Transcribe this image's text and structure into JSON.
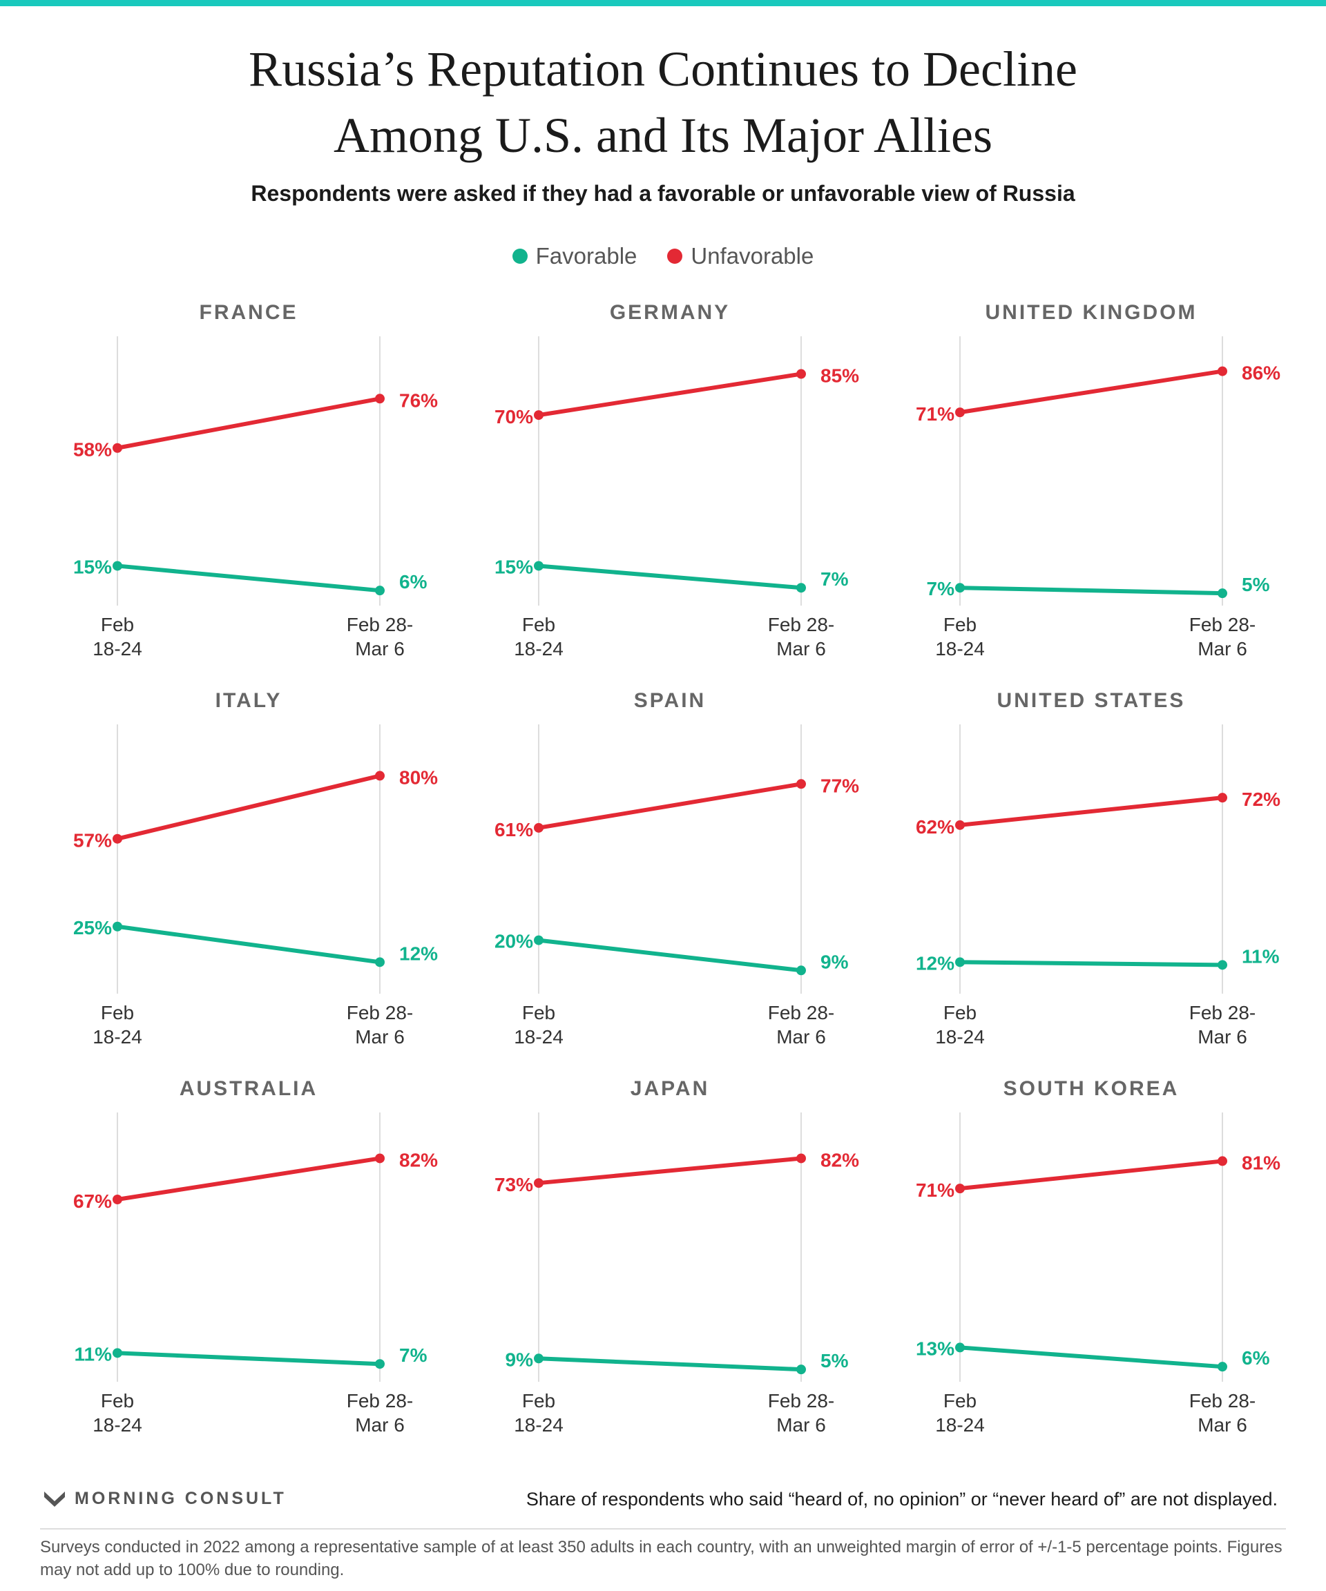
{
  "title_lines": [
    "Russia’s Reputation Continues to Decline",
    "Among U.S. and Its Major Allies"
  ],
  "subtitle": "Respondents were asked if they had a favorable or unfavorable view of Russia",
  "legend": [
    {
      "label": "Favorable",
      "color": "#11b38d"
    },
    {
      "label": "Unfavorable",
      "color": "#e32934"
    }
  ],
  "colors": {
    "favorable": "#11b38d",
    "unfavorable": "#e32934",
    "gridline": "#dddddd",
    "panel_title": "#666666"
  },
  "chart_data": {
    "type": "line",
    "x_labels": [
      [
        "Feb",
        "18-24"
      ],
      [
        "Feb 28-",
        "Mar 6"
      ]
    ],
    "ylim": [
      0,
      100
    ],
    "panels": [
      {
        "country": "FRANCE",
        "series": [
          {
            "name": "Favorable",
            "values": [
              15,
              6
            ]
          },
          {
            "name": "Unfavorable",
            "values": [
              58,
              76
            ]
          }
        ]
      },
      {
        "country": "GERMANY",
        "series": [
          {
            "name": "Favorable",
            "values": [
              15,
              7
            ]
          },
          {
            "name": "Unfavorable",
            "values": [
              70,
              85
            ]
          }
        ]
      },
      {
        "country": "UNITED KINGDOM",
        "series": [
          {
            "name": "Favorable",
            "values": [
              7,
              5
            ]
          },
          {
            "name": "Unfavorable",
            "values": [
              71,
              86
            ]
          }
        ]
      },
      {
        "country": "ITALY",
        "series": [
          {
            "name": "Favorable",
            "values": [
              25,
              12
            ]
          },
          {
            "name": "Unfavorable",
            "values": [
              57,
              80
            ]
          }
        ]
      },
      {
        "country": "SPAIN",
        "series": [
          {
            "name": "Favorable",
            "values": [
              20,
              9
            ]
          },
          {
            "name": "Unfavorable",
            "values": [
              61,
              77
            ]
          }
        ]
      },
      {
        "country": "UNITED STATES",
        "series": [
          {
            "name": "Favorable",
            "values": [
              12,
              11
            ]
          },
          {
            "name": "Unfavorable",
            "values": [
              62,
              72
            ]
          }
        ]
      },
      {
        "country": "AUSTRALIA",
        "series": [
          {
            "name": "Favorable",
            "values": [
              11,
              7
            ]
          },
          {
            "name": "Unfavorable",
            "values": [
              67,
              82
            ]
          }
        ]
      },
      {
        "country": "JAPAN",
        "series": [
          {
            "name": "Favorable",
            "values": [
              9,
              5
            ]
          },
          {
            "name": "Unfavorable",
            "values": [
              73,
              82
            ]
          }
        ]
      },
      {
        "country": "SOUTH KOREA",
        "series": [
          {
            "name": "Favorable",
            "values": [
              13,
              6
            ]
          },
          {
            "name": "Unfavorable",
            "values": [
              71,
              81
            ]
          }
        ]
      }
    ]
  },
  "brand": "MORNING CONSULT",
  "note": "Share of respondents who said “heard of, no opinion” or “never heard of” are not displayed.",
  "footer": "Surveys conducted in 2022 among a representative sample of at least 350 adults in each country, with an unweighted margin of error of +/-1-5 percentage points. Figures may not add up to 100% due to rounding."
}
